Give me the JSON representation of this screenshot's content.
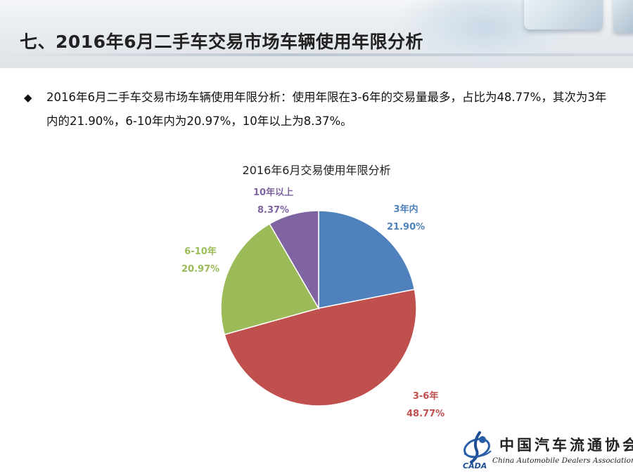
{
  "slide": {
    "title": "七、2016年6月二手车交易市场车辆使用年限分析",
    "bullet": "2016年6月二手车交易市场车辆使用年限分析：使用年限在3-6年的交易量最多，占比为48.77%，其次为3年内的21.90%，6-10年内为20.97%，10年以上为8.37%。",
    "bullet_icon": "diamond-bullet"
  },
  "chart_data": {
    "type": "pie",
    "title": "2016年6月交易使用年限分析",
    "slices": [
      {
        "category": "3年内",
        "value": 21.9,
        "label": "21.90%",
        "color": "#4f81bd"
      },
      {
        "category": "3-6年",
        "value": 48.77,
        "label": "48.77%",
        "color": "#c0504d"
      },
      {
        "category": "6-10年",
        "value": 20.97,
        "label": "20.97%",
        "color": "#9bbb59"
      },
      {
        "category": "10年以上",
        "value": 8.37,
        "label": "8.37%",
        "color": "#8064a2"
      }
    ]
  },
  "logo": {
    "abbr": "CADA",
    "name_cn": "中国汽车流通协会",
    "name_en": "China Automobile Dealers Association"
  }
}
